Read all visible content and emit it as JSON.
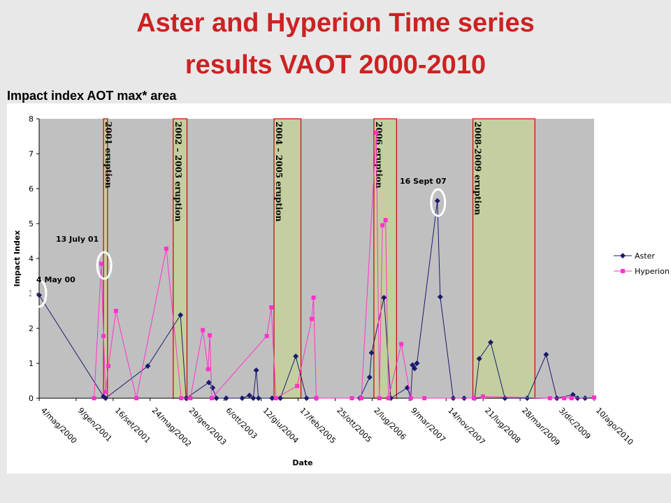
{
  "slide": {
    "title_line1": "Aster and Hyperion Time series",
    "title_line2": "results VAOT 2000-2010",
    "subtitle": "Impact index  AOT max* area"
  },
  "colors": {
    "title": "#cc2222",
    "aster": "#1a1a6e",
    "hyperion": "#ff33cc",
    "plot_bg": "#c0c0c0",
    "eruption_fill": "#c3cfa0",
    "eruption_border": "#cc0000"
  },
  "chart_data": {
    "type": "line",
    "title": "",
    "xlabel": "Date",
    "ylabel": "Impact Index",
    "ylim": [
      0,
      8
    ],
    "yticks": [
      "0",
      "1",
      "2",
      "3",
      "4",
      "5",
      "6",
      "7",
      "8"
    ],
    "xlim": [
      "2000-05-04",
      "2010-08-10"
    ],
    "xticks": [
      {
        "date": "2000-05-04",
        "label": "4/mag/2000"
      },
      {
        "date": "2001-01-09",
        "label": "9/gen/2001"
      },
      {
        "date": "2001-09-16",
        "label": "16/set/2001"
      },
      {
        "date": "2002-05-24",
        "label": "24/mag/2002"
      },
      {
        "date": "2003-01-29",
        "label": "29/gen/2003"
      },
      {
        "date": "2003-10-06",
        "label": "6/ott/2003"
      },
      {
        "date": "2004-06-12",
        "label": "12/giu/2004"
      },
      {
        "date": "2005-02-17",
        "label": "17/feb/2005"
      },
      {
        "date": "2005-10-25",
        "label": "25/ott/2005"
      },
      {
        "date": "2006-07-02",
        "label": "2/lug/2006"
      },
      {
        "date": "2007-03-09",
        "label": "9/mar/2007"
      },
      {
        "date": "2007-11-14",
        "label": "14/nov/2007"
      },
      {
        "date": "2008-07-21",
        "label": "21/lug/2008"
      },
      {
        "date": "2009-03-28",
        "label": "28/mar/2009"
      },
      {
        "date": "2009-12-03",
        "label": "3/dic/2009"
      },
      {
        "date": "2010-08-10",
        "label": "10/ago/2010"
      }
    ],
    "grid": false,
    "legend": "right",
    "eruptions": [
      {
        "label": "2001 eruption",
        "start": "2001-07-13",
        "end": "2001-08-09"
      },
      {
        "label": "2002 – 2003 eruption",
        "start": "2002-10-27",
        "end": "2003-01-28"
      },
      {
        "label": "2004 – 2005 eruption",
        "start": "2004-09-07",
        "end": "2005-03-08"
      },
      {
        "label": "2006 eruption",
        "start": "2006-07-14",
        "end": "2006-12-14"
      },
      {
        "label": "2008-2009 eruption",
        "start": "2008-05-13",
        "end": "2009-07-06"
      }
    ],
    "annotations": [
      {
        "text": "4 May 00",
        "date": "2000-05-04",
        "y": 3.0
      },
      {
        "text": "13 July 01",
        "date": "2001-07-13",
        "y": 3.8
      },
      {
        "text": "16 Sept 07",
        "date": "2007-09-16",
        "y": 5.6
      }
    ],
    "series": [
      {
        "name": "Aster",
        "points": [
          [
            "2000-05-04",
            2.95
          ],
          [
            "2001-07-13",
            0.05
          ],
          [
            "2001-07-27",
            0.0
          ],
          [
            "2002-05-08",
            0.92
          ],
          [
            "2002-12-15",
            2.38
          ],
          [
            "2003-01-22",
            0.0
          ],
          [
            "2003-06-25",
            0.45
          ],
          [
            "2003-07-20",
            0.3
          ],
          [
            "2003-08-15",
            0.0
          ],
          [
            "2003-10-20",
            0.0
          ],
          [
            "2004-02-05",
            0.0
          ],
          [
            "2004-03-25",
            0.08
          ],
          [
            "2004-04-20",
            0.0
          ],
          [
            "2004-05-10",
            0.8
          ],
          [
            "2004-05-25",
            0.0
          ],
          [
            "2004-08-25",
            0.0
          ],
          [
            "2004-10-20",
            0.0
          ],
          [
            "2005-02-01",
            1.2
          ],
          [
            "2005-04-15",
            0.0
          ],
          [
            "2005-06-20",
            0.0
          ],
          [
            "2006-04-10",
            0.0
          ],
          [
            "2006-06-15",
            0.6
          ],
          [
            "2006-06-28",
            1.3
          ],
          [
            "2006-09-20",
            2.88
          ],
          [
            "2006-11-05",
            0.0
          ],
          [
            "2007-02-25",
            0.3
          ],
          [
            "2007-03-20",
            0.0
          ],
          [
            "2007-04-01",
            0.95
          ],
          [
            "2007-04-15",
            0.85
          ],
          [
            "2007-05-01",
            1.0
          ],
          [
            "2007-09-16",
            5.65
          ],
          [
            "2007-10-05",
            2.9
          ],
          [
            "2008-01-01",
            0.0
          ],
          [
            "2008-03-15",
            0.0
          ],
          [
            "2008-05-25",
            0.0
          ],
          [
            "2008-06-25",
            1.13
          ],
          [
            "2008-09-10",
            1.6
          ],
          [
            "2008-12-15",
            0.0
          ],
          [
            "2009-05-15",
            0.0
          ],
          [
            "2009-09-20",
            1.25
          ],
          [
            "2009-12-01",
            0.0
          ],
          [
            "2010-03-20",
            0.1
          ],
          [
            "2010-04-20",
            0.0
          ],
          [
            "2010-06-10",
            0.0
          ]
        ]
      },
      {
        "name": "Hyperion",
        "points": [
          [
            "2001-05-10",
            0.0
          ],
          [
            "2001-06-28",
            3.85
          ],
          [
            "2001-07-13",
            1.78
          ],
          [
            "2001-07-27",
            0.18
          ],
          [
            "2001-08-15",
            0.92
          ],
          [
            "2001-10-05",
            2.5
          ],
          [
            "2002-02-20",
            0.0
          ],
          [
            "2002-09-10",
            4.28
          ],
          [
            "2002-12-20",
            0.0
          ],
          [
            "2003-02-20",
            0.0
          ],
          [
            "2003-05-15",
            1.95
          ],
          [
            "2003-06-20",
            0.83
          ],
          [
            "2003-07-01",
            1.8
          ],
          [
            "2003-07-15",
            0.0
          ],
          [
            "2004-07-20",
            1.78
          ],
          [
            "2004-08-20",
            2.6
          ],
          [
            "2004-09-20",
            0.0
          ],
          [
            "2005-02-10",
            0.35
          ],
          [
            "2005-05-20",
            2.27
          ],
          [
            "2005-06-01",
            2.88
          ],
          [
            "2005-06-20",
            0.0
          ],
          [
            "2006-02-15",
            0.0
          ],
          [
            "2006-04-20",
            0.0
          ],
          [
            "2006-07-30",
            7.6
          ],
          [
            "2006-08-20",
            0.0
          ],
          [
            "2006-09-10",
            4.95
          ],
          [
            "2006-10-01",
            5.1
          ],
          [
            "2006-10-20",
            0.0
          ],
          [
            "2007-01-15",
            1.55
          ],
          [
            "2007-03-20",
            0.0
          ],
          [
            "2007-06-20",
            0.0
          ],
          [
            "2008-05-20",
            0.0
          ],
          [
            "2008-07-20",
            0.05
          ],
          [
            "2009-10-15",
            0.0
          ],
          [
            "2010-01-20",
            0.0
          ],
          [
            "2010-03-10",
            0.0
          ],
          [
            "2010-08-10",
            0.02
          ]
        ]
      }
    ]
  }
}
